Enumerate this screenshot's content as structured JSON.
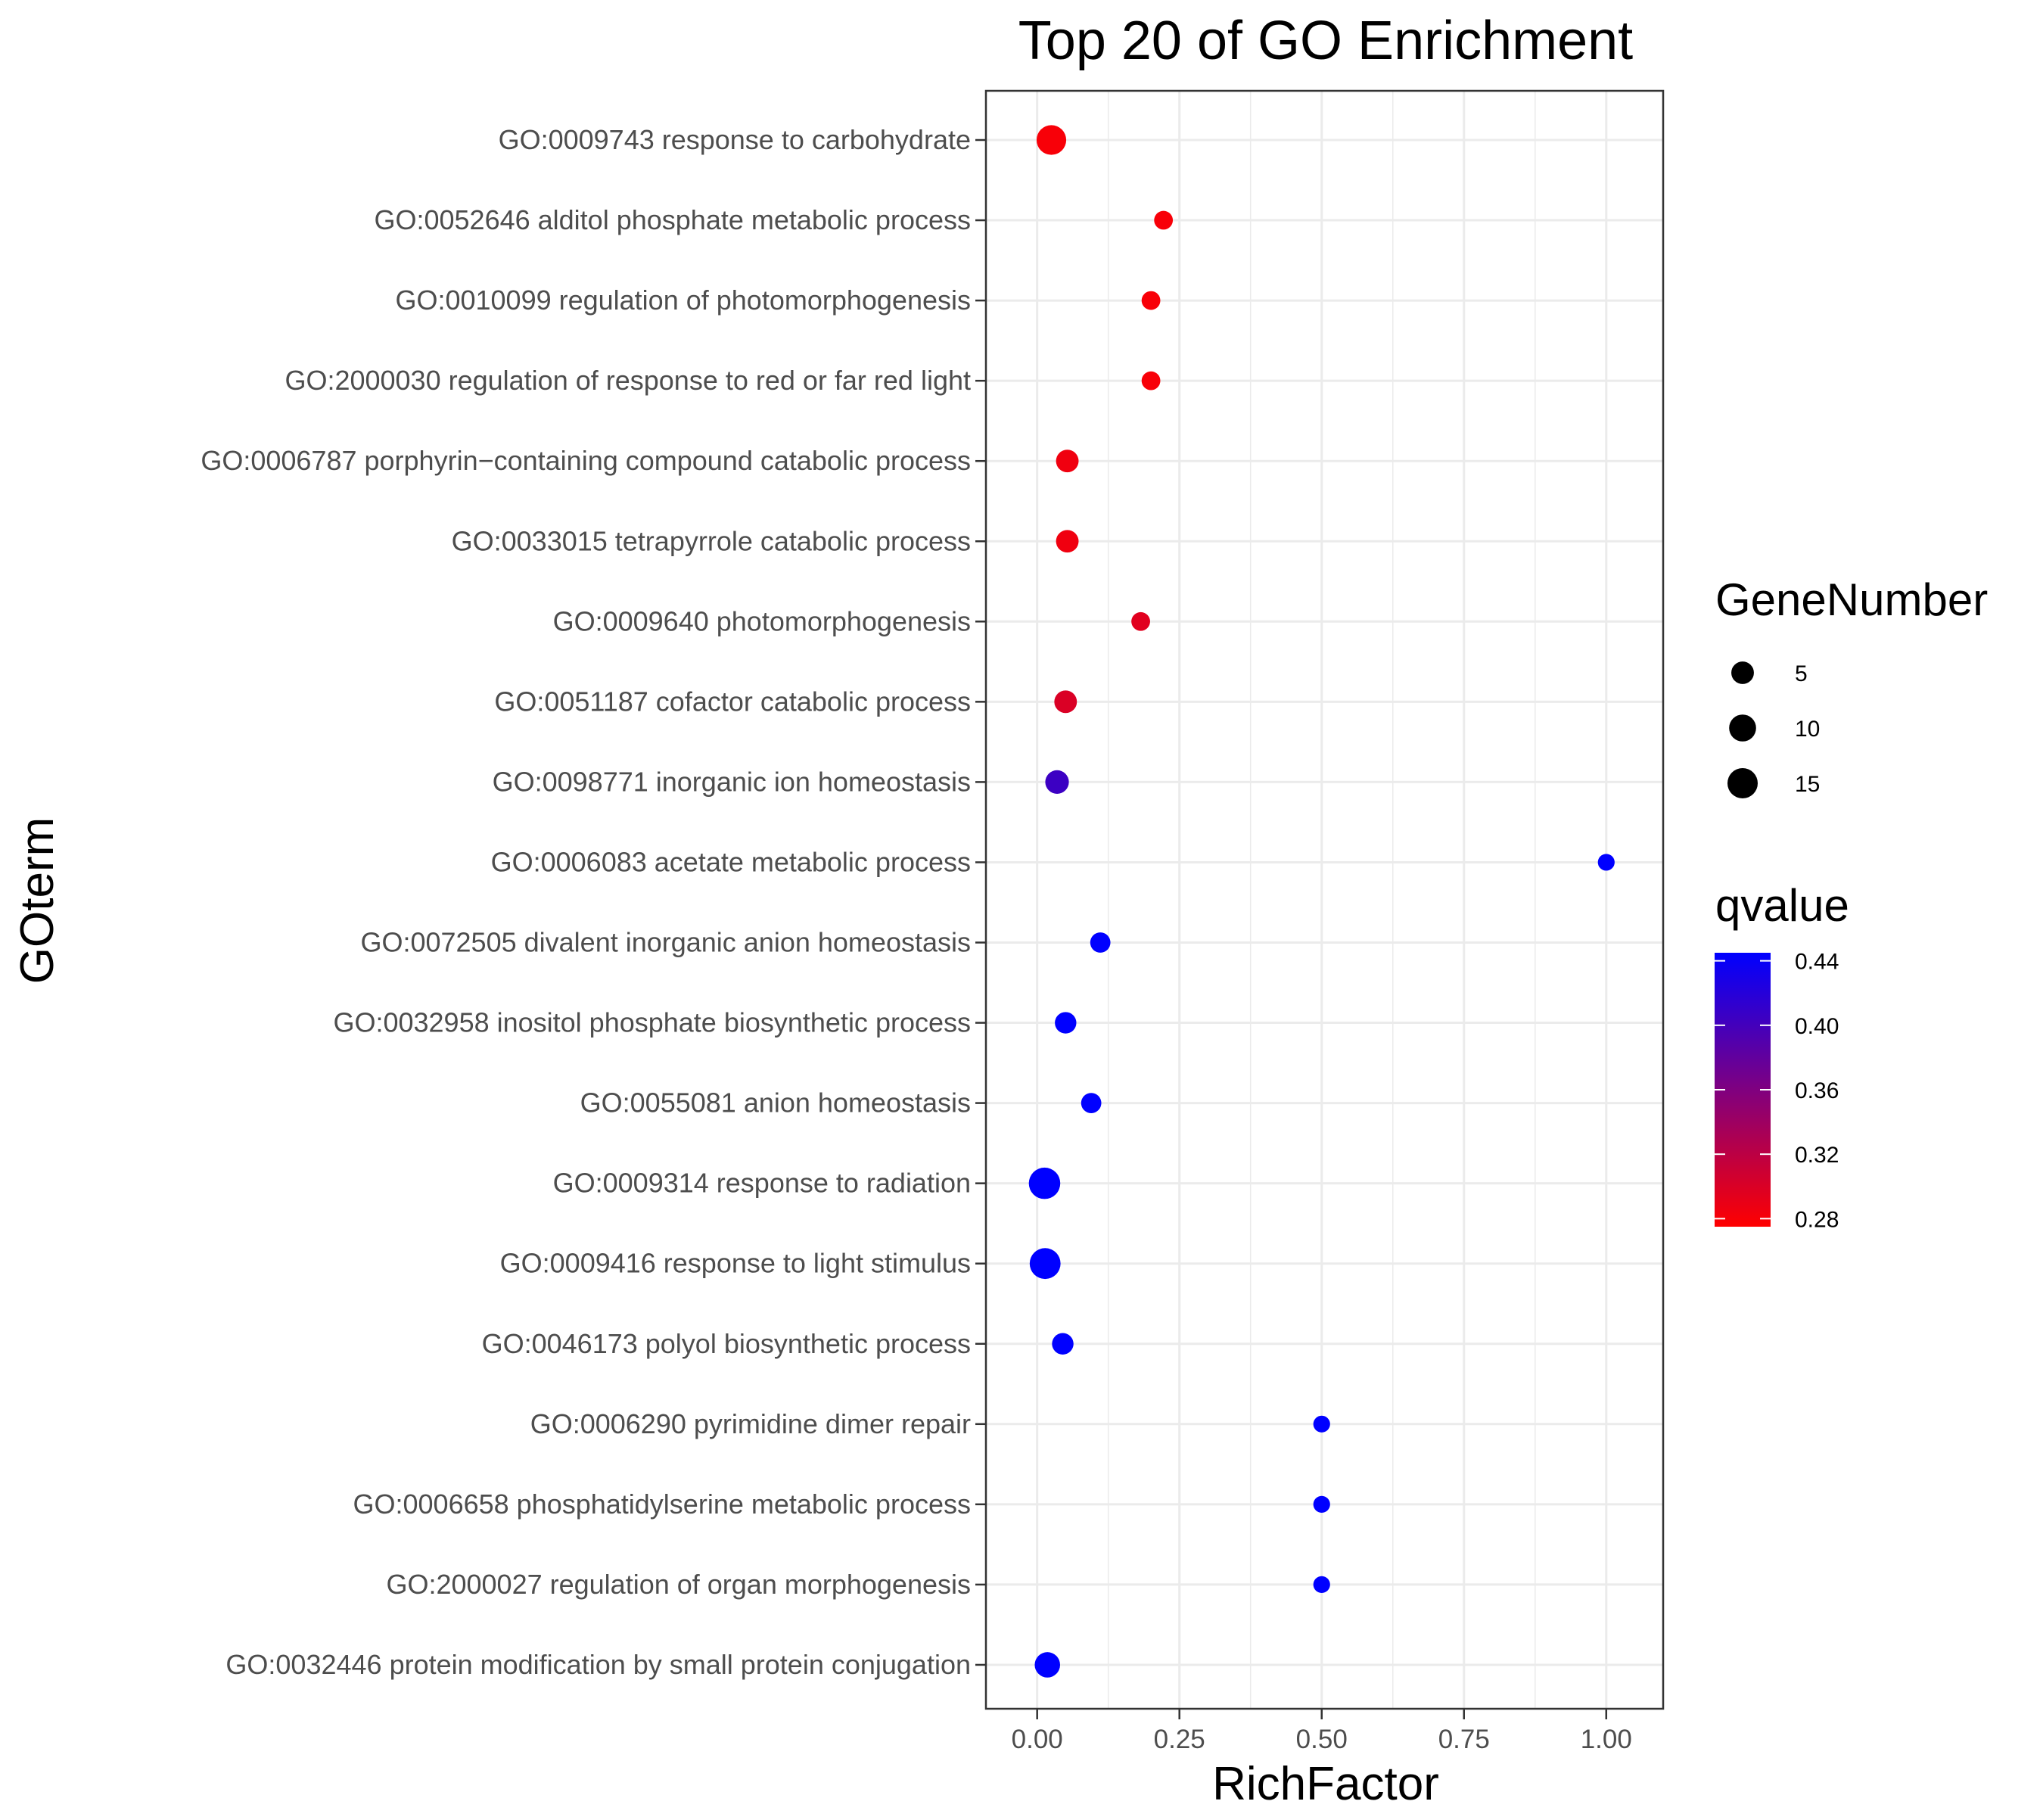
{
  "chart_data": {
    "type": "scatter",
    "title": "Top 20 of GO Enrichment",
    "xlabel": "RichFactor",
    "ylabel": "GOterm",
    "xlim": [
      -0.09,
      1.1
    ],
    "xticks": [
      0.0,
      0.25,
      0.5,
      0.75,
      1.0
    ],
    "xtick_labels": [
      "0.00",
      "0.25",
      "0.50",
      "0.75",
      "1.00"
    ],
    "grid": true,
    "points": [
      {
        "term": "GO:0009743 response to carbohydrate",
        "x": 0.025,
        "gene_number": 14,
        "qvalue": 0.28
      },
      {
        "term": "GO:0052646 alditol phosphate metabolic process",
        "x": 0.222,
        "gene_number": 2,
        "qvalue": 0.28
      },
      {
        "term": "GO:0010099 regulation of photomorphogenesis",
        "x": 0.2,
        "gene_number": 2,
        "qvalue": 0.28
      },
      {
        "term": "GO:2000030 regulation of response to red or far red light",
        "x": 0.2,
        "gene_number": 2,
        "qvalue": 0.28
      },
      {
        "term": "GO:0006787 porphyrin−containing compound catabolic process",
        "x": 0.053,
        "gene_number": 5,
        "qvalue": 0.285
      },
      {
        "term": "GO:0033015 tetrapyrrole catabolic process",
        "x": 0.053,
        "gene_number": 5,
        "qvalue": 0.285
      },
      {
        "term": "GO:0009640 photomorphogenesis",
        "x": 0.182,
        "gene_number": 2,
        "qvalue": 0.295
      },
      {
        "term": "GO:0051187 cofactor catabolic process",
        "x": 0.05,
        "gene_number": 5,
        "qvalue": 0.3
      },
      {
        "term": "GO:0098771 inorganic ion homeostasis",
        "x": 0.035,
        "gene_number": 6,
        "qvalue": 0.405
      },
      {
        "term": "GO:0006083 acetate metabolic process",
        "x": 1.0,
        "gene_number": 1,
        "qvalue": 0.445
      },
      {
        "term": "GO:0072505 divalent inorganic anion homeostasis",
        "x": 0.111,
        "gene_number": 3,
        "qvalue": 0.445
      },
      {
        "term": "GO:0032958 inositol phosphate biosynthetic process",
        "x": 0.05,
        "gene_number": 4,
        "qvalue": 0.445
      },
      {
        "term": "GO:0055081 anion homeostasis",
        "x": 0.095,
        "gene_number": 3,
        "qvalue": 0.445
      },
      {
        "term": "GO:0009314 response to radiation",
        "x": 0.013,
        "gene_number": 17,
        "qvalue": 0.445
      },
      {
        "term": "GO:0009416 response to light stimulus",
        "x": 0.014,
        "gene_number": 16,
        "qvalue": 0.445
      },
      {
        "term": "GO:0046173 polyol biosynthetic process",
        "x": 0.045,
        "gene_number": 4,
        "qvalue": 0.445
      },
      {
        "term": "GO:0006290 pyrimidine dimer repair",
        "x": 0.5,
        "gene_number": 1,
        "qvalue": 0.445
      },
      {
        "term": "GO:0006658 phosphatidylserine metabolic process",
        "x": 0.5,
        "gene_number": 1,
        "qvalue": 0.445
      },
      {
        "term": "GO:2000027 regulation of organ morphogenesis",
        "x": 0.5,
        "gene_number": 1,
        "qvalue": 0.445
      },
      {
        "term": "GO:0032446 protein modification by small protein conjugation",
        "x": 0.018,
        "gene_number": 8,
        "qvalue": 0.445
      }
    ],
    "legend": {
      "placement": "right",
      "size_title": "GeneNumber",
      "size_breaks": [
        5,
        10,
        15
      ],
      "size_labels": [
        "5",
        "10",
        "15"
      ],
      "color_title": "qvalue",
      "color_range": [
        0.275,
        0.445
      ],
      "color_breaks": [
        0.28,
        0.32,
        0.36,
        0.4,
        0.44
      ],
      "color_labels": [
        "0.28",
        "0.32",
        "0.36",
        "0.40",
        "0.44"
      ],
      "color_low": "#ff0000",
      "color_high": "#0000ff"
    }
  }
}
